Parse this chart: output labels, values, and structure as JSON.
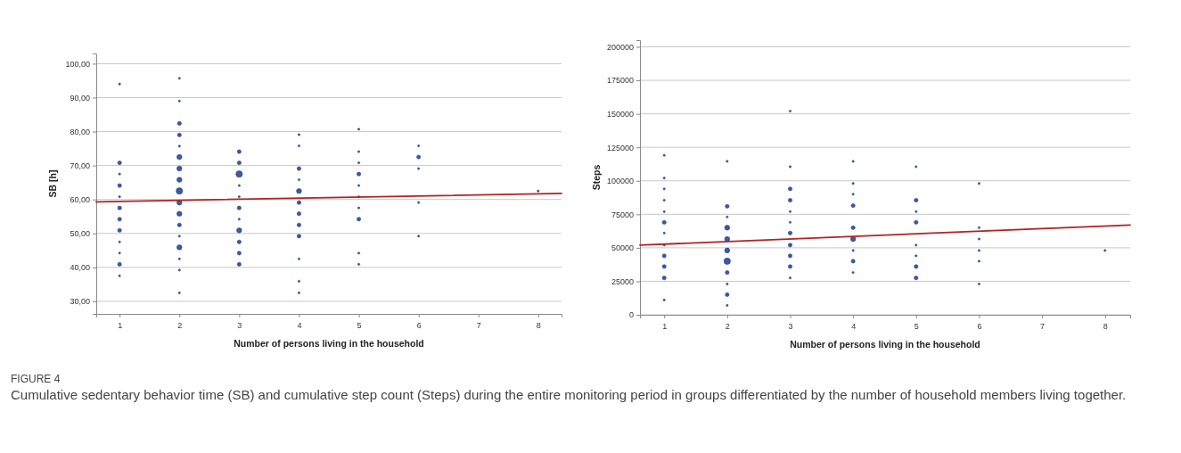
{
  "chart_data": [
    {
      "type": "bubble",
      "xlabel": "Number of persons living in the household",
      "ylabel": "SB [h]",
      "xlim": [
        0.61,
        8.39
      ],
      "xticks": [
        1,
        2,
        3,
        4,
        5,
        6,
        7,
        8
      ],
      "ylim": [
        26.3,
        103
      ],
      "yticks": [
        {
          "value": 30,
          "label": "30,00"
        },
        {
          "value": 40,
          "label": "40,00"
        },
        {
          "value": 50,
          "label": "50,00"
        },
        {
          "value": 60,
          "label": "60,00"
        },
        {
          "value": 70,
          "label": "70,00"
        },
        {
          "value": 80,
          "label": "80,00"
        },
        {
          "value": 90,
          "label": "90,00"
        },
        {
          "value": 100,
          "label": "100,00"
        }
      ],
      "grid": "y",
      "series": [
        {
          "color": "#1c3d8f",
          "x": [
            1,
            1,
            1,
            1,
            1,
            1,
            1,
            1,
            1,
            1,
            1,
            1,
            2,
            2,
            2,
            2,
            2,
            2,
            2,
            2,
            2,
            2,
            2,
            2,
            2,
            2,
            2,
            2,
            2,
            3,
            3,
            3,
            3,
            3,
            3,
            3,
            3,
            3,
            3,
            3,
            4,
            4,
            4,
            4,
            4,
            4,
            4,
            4,
            4,
            4,
            4,
            4,
            5,
            5,
            5,
            5,
            5,
            5,
            5,
            5,
            5,
            5,
            6,
            6,
            6,
            6,
            6,
            8
          ],
          "values": [
            94.0,
            70.8,
            67.5,
            64.1,
            60.8,
            57.5,
            54.2,
            50.9,
            47.5,
            44.2,
            40.9,
            37.5,
            95.7,
            89.0,
            82.4,
            79.0,
            75.7,
            72.5,
            69.1,
            65.8,
            62.5,
            59.1,
            55.8,
            52.5,
            49.2,
            45.9,
            42.5,
            39.2,
            32.5,
            74.1,
            70.8,
            67.5,
            64.1,
            60.8,
            57.5,
            54.2,
            50.9,
            47.5,
            44.2,
            40.9,
            79.1,
            75.8,
            69.1,
            65.8,
            62.5,
            59.1,
            55.8,
            52.5,
            49.2,
            42.5,
            35.9,
            32.5,
            80.7,
            74.1,
            70.8,
            67.5,
            64.1,
            60.8,
            57.5,
            54.2,
            44.2,
            40.9,
            75.8,
            72.5,
            69.1,
            59.1,
            49.2,
            62.5
          ],
          "sizes": [
            0.1,
            0.35,
            0.1,
            0.35,
            0.1,
            0.35,
            0.35,
            0.35,
            0.1,
            0.1,
            0.35,
            0.1,
            0.1,
            0.1,
            0.35,
            0.35,
            0.1,
            0.6,
            0.6,
            0.6,
            1,
            0.6,
            0.6,
            0.35,
            0.1,
            0.6,
            0.1,
            0.1,
            0.1,
            0.35,
            0.35,
            1,
            0.1,
            0.1,
            0.35,
            0.1,
            0.6,
            0.35,
            0.35,
            0.35,
            0.1,
            0.1,
            0.35,
            0.1,
            0.6,
            0.35,
            0.35,
            0.35,
            0.35,
            0.1,
            0.1,
            0.1,
            0.1,
            0.1,
            0.1,
            0.35,
            0.1,
            0.1,
            0.1,
            0.35,
            0.1,
            0.1,
            0.1,
            0.35,
            0.1,
            0.1,
            0.1,
            0.1
          ]
        },
        {
          "type": "line",
          "color": "#b22222",
          "x": [
            0.61,
            8.39
          ],
          "values": [
            59.3,
            61.8
          ]
        }
      ]
    },
    {
      "type": "bubble",
      "xlabel": "Number of persons living in the household",
      "ylabel": "Steps",
      "xlim": [
        0.615,
        8.4
      ],
      "xticks": [
        1,
        2,
        3,
        4,
        5,
        6,
        7,
        8
      ],
      "ylim": [
        0,
        205000
      ],
      "yticks": [
        0,
        25000,
        50000,
        75000,
        100000,
        125000,
        150000,
        175000,
        200000
      ],
      "grid": "y",
      "series": [
        {
          "color": "#1c3d8f",
          "x": [
            1,
            1,
            1,
            1,
            1,
            1,
            1,
            1,
            1,
            1,
            1,
            1,
            2,
            2,
            2,
            2,
            2,
            2,
            2,
            2,
            2,
            2,
            2,
            3,
            3,
            3,
            3,
            3,
            3,
            3,
            3,
            3,
            3,
            3,
            4,
            4,
            4,
            4,
            4,
            4,
            4,
            4,
            4,
            5,
            5,
            5,
            5,
            5,
            5,
            5,
            5,
            6,
            6,
            6,
            6,
            6,
            6,
            8
          ],
          "values": [
            119000,
            102000,
            94000,
            85500,
            77000,
            69000,
            61000,
            52000,
            44000,
            36000,
            27500,
            11000,
            114500,
            81000,
            73000,
            65000,
            56500,
            48000,
            40000,
            31500,
            23000,
            15000,
            7000,
            152000,
            110500,
            94000,
            85500,
            77000,
            69000,
            61000,
            52000,
            44000,
            36000,
            27500,
            114500,
            98000,
            90000,
            81500,
            65000,
            56500,
            48000,
            40000,
            31500,
            110500,
            85500,
            77000,
            69000,
            52000,
            44000,
            36000,
            27500,
            98000,
            65000,
            56500,
            48000,
            40000,
            23000,
            48000
          ],
          "sizes": [
            0.1,
            0.1,
            0.1,
            0.1,
            0.1,
            0.35,
            0.1,
            0.1,
            0.35,
            0.35,
            0.35,
            0.1,
            0.1,
            0.35,
            0.1,
            0.6,
            0.6,
            0.6,
            1,
            0.35,
            0.1,
            0.35,
            0.1,
            0.1,
            0.1,
            0.35,
            0.35,
            0.1,
            0.1,
            0.35,
            0.35,
            0.35,
            0.35,
            0.1,
            0.1,
            0.1,
            0.1,
            0.35,
            0.35,
            0.6,
            0.1,
            0.35,
            0.1,
            0.1,
            0.35,
            0.1,
            0.35,
            0.1,
            0.1,
            0.35,
            0.35,
            0.1,
            0.1,
            0.1,
            0.1,
            0.1,
            0.1,
            0.1
          ]
        },
        {
          "type": "line",
          "color": "#b22222",
          "x": [
            0.615,
            8.4
          ],
          "values": [
            52000,
            67000
          ]
        }
      ],
      "annotations": [
        "FIGURE 4",
        "Cumulative sedentary behavior time (SB) and cumulative step count (Steps) during the entire monitoring period in groups differentiated by the number of household members living together."
      ]
    }
  ]
}
